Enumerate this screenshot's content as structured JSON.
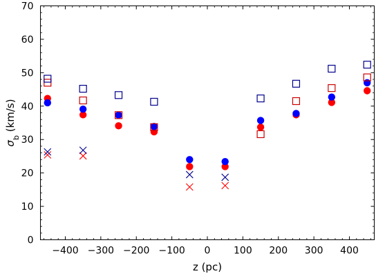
{
  "chart_data": {
    "type": "scatter",
    "xlabel": "z (pc)",
    "ylabel_main": "σ",
    "ylabel_sub": "b",
    "ylabel_unit": " (km/s)",
    "xlim": [
      -470,
      470
    ],
    "ylim": [
      0,
      70
    ],
    "x_ticks": [
      -400,
      -300,
      -200,
      -100,
      0,
      100,
      200,
      300,
      400
    ],
    "x_tick_labels": [
      "−400",
      "−300",
      "−200",
      "−100",
      "0",
      "100",
      "200",
      "300",
      "400"
    ],
    "y_ticks": [
      0,
      10,
      20,
      30,
      40,
      50,
      60,
      70
    ],
    "y_tick_labels": [
      "0",
      "10",
      "20",
      "30",
      "40",
      "50",
      "60",
      "70"
    ],
    "x_minor_step": 20,
    "y_minor_step": 2,
    "grid": false,
    "series": [
      {
        "marker": "filled-circle",
        "color": "#ff0000",
        "x": [
          -450,
          -350,
          -250,
          -150,
          -50,
          50,
          150,
          250,
          350,
          450
        ],
        "y": [
          42.3,
          37.4,
          34.1,
          32.3,
          21.9,
          21.9,
          33.7,
          37.4,
          41.1,
          44.6
        ]
      },
      {
        "marker": "filled-circle",
        "color": "#0000ff",
        "x": [
          -450,
          -350,
          -250,
          -150,
          -50,
          50,
          150,
          250,
          350,
          450
        ],
        "y": [
          41.0,
          39.1,
          37.3,
          33.9,
          24.0,
          23.4,
          35.7,
          37.8,
          42.7,
          47.0
        ]
      },
      {
        "marker": "open-square",
        "color": "#cc0000",
        "x": [
          -450,
          -350,
          -250,
          -150,
          -50,
          50,
          150,
          250,
          350,
          450
        ],
        "y": [
          47.0,
          41.7,
          37.3,
          33.7,
          null,
          null,
          31.6,
          41.5,
          45.4,
          48.6
        ]
      },
      {
        "marker": "open-square",
        "color": "#00008b",
        "x": [
          -450,
          -350,
          -250,
          -150,
          -50,
          50,
          150,
          250,
          350,
          450
        ],
        "y": [
          48.2,
          45.2,
          43.3,
          41.3,
          null,
          null,
          42.3,
          46.7,
          51.2,
          52.4
        ]
      },
      {
        "marker": "cross",
        "color": "#ff0000",
        "x": [
          -450,
          -350,
          -50,
          50
        ],
        "y": [
          25.4,
          25.1,
          15.8,
          16.2
        ]
      },
      {
        "marker": "cross",
        "color": "#00008b",
        "x": [
          -450,
          -350,
          -50,
          50
        ],
        "y": [
          26.3,
          26.8,
          19.5,
          18.7
        ]
      }
    ]
  }
}
